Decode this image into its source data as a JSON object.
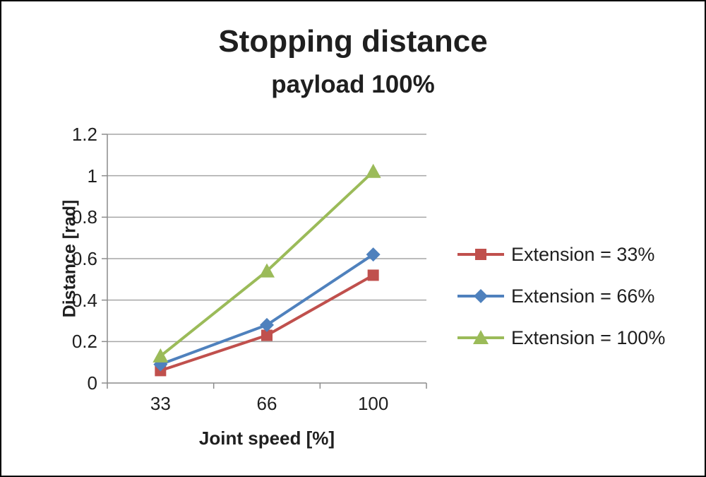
{
  "title": "Stopping distance",
  "subtitle": "payload 100%",
  "chart_data": {
    "type": "line",
    "title": "Stopping distance",
    "subtitle": "payload 100%",
    "xlabel": "Joint speed [%]",
    "ylabel": "Distance [rad]",
    "categories": [
      "33",
      "66",
      "100"
    ],
    "series": [
      {
        "name": "Extension = 33%",
        "marker": "square",
        "color": "#c0504d",
        "values": [
          0.06,
          0.23,
          0.52
        ]
      },
      {
        "name": "Extension = 66%",
        "marker": "diamond",
        "color": "#4f81bd",
        "values": [
          0.09,
          0.28,
          0.62
        ]
      },
      {
        "name": "Extension = 100%",
        "marker": "triangle",
        "color": "#9bbb59",
        "values": [
          0.13,
          0.54,
          1.02
        ]
      }
    ],
    "ylim": [
      0,
      1.2
    ],
    "yticks": [
      "0",
      "0.2",
      "0.4",
      "0.6",
      "0.8",
      "1",
      "1.2"
    ],
    "grid": true,
    "legend_position": "right"
  },
  "colors": {
    "grid": "#a6a6a6",
    "axis": "#8c8c8c",
    "text": "#1f1f1f",
    "frame_border": "#000000",
    "background": "#ffffff"
  }
}
